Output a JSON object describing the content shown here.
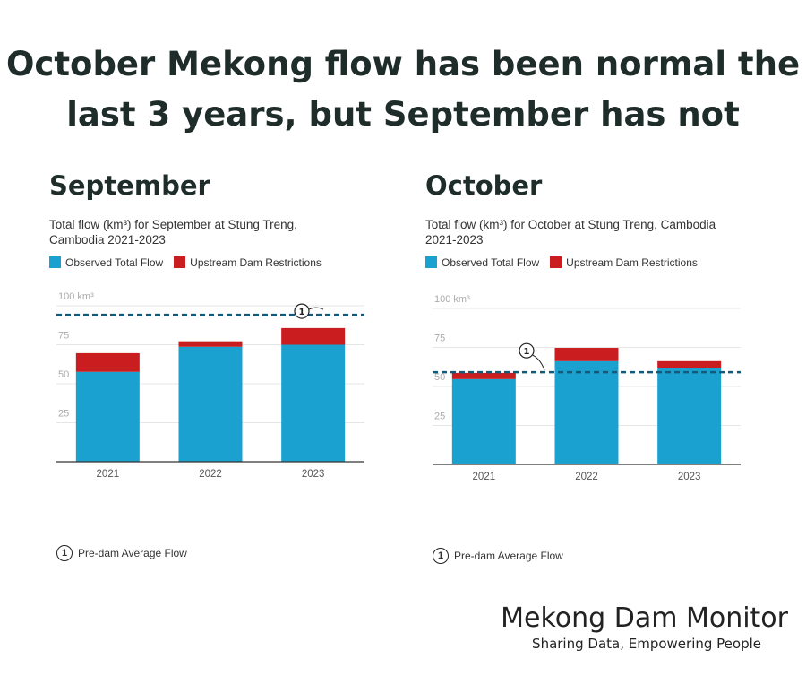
{
  "title": "October Mekong flow has been normal the last 3 years, but September has not",
  "colors": {
    "observed": "#1ba1cf",
    "restrictions": "#c91d1f",
    "predam": "#135a7a"
  },
  "legend": {
    "observed": "Observed Total Flow",
    "restrictions": "Upstream Dam Restrictions"
  },
  "note": {
    "marker": "1",
    "label": "Pre-dam Average Flow"
  },
  "brand": {
    "name": "Mekong Dam Monitor",
    "tagline": "Sharing Data, Empowering People"
  },
  "chart_data": [
    {
      "type": "bar",
      "stacked": true,
      "heading": "September",
      "title": "Total flow (km³) for September at Stung Treng, Cambodia 2021-2023",
      "categories": [
        "2021",
        "2022",
        "2023"
      ],
      "series": [
        {
          "name": "Observed Total Flow",
          "values": [
            57.6,
            73.7,
            75.0
          ]
        },
        {
          "name": "Upstream Dam Restrictions",
          "values": [
            12.0,
            3.5,
            10.7
          ]
        }
      ],
      "reference_line": {
        "name": "Pre-dam Average Flow",
        "value": 94.2
      },
      "yticks": [
        "25",
        "50",
        "75",
        "100 km³"
      ],
      "ylim": [
        0,
        100
      ]
    },
    {
      "type": "bar",
      "stacked": true,
      "heading": "October",
      "title": "Total flow (km³) for October at Stung Treng, Cambodia 2021-2023",
      "categories": [
        "2021",
        "2022",
        "2023"
      ],
      "series": [
        {
          "name": "Observed Total Flow",
          "values": [
            54.7,
            66.2,
            61.8
          ]
        },
        {
          "name": "Upstream Dam Restrictions",
          "values": [
            4.0,
            8.5,
            4.4
          ]
        }
      ],
      "reference_line": {
        "name": "Pre-dam Average Flow",
        "value": 59.1
      },
      "yticks": [
        "25",
        "50",
        "75",
        "100 km³"
      ],
      "ylim": [
        0,
        100
      ]
    }
  ]
}
